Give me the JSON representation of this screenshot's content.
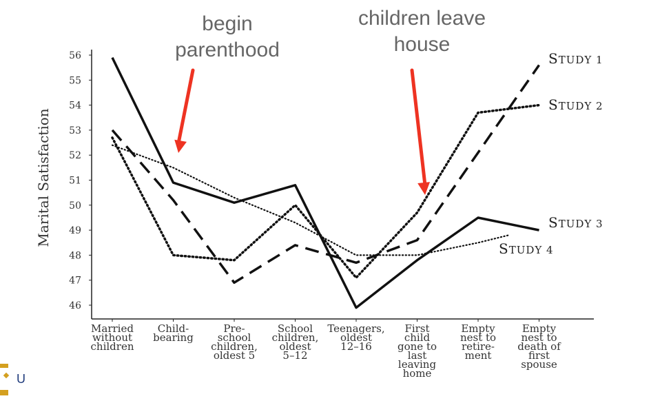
{
  "annotations": {
    "begin": [
      "begin",
      "parenthood"
    ],
    "leave": [
      "children leave",
      "house"
    ]
  },
  "colors": {
    "arrow": "#ee3322",
    "line": "#111111",
    "ann_text": "#666666",
    "logo_gold": "#d4a020",
    "logo_blue": "#1e3a7b"
  },
  "logo_text": "U",
  "chart_data": {
    "type": "line",
    "ylabel": "Marital Satisfaction",
    "ylim": [
      46,
      56
    ],
    "yticks": [
      46,
      47,
      48,
      49,
      50,
      51,
      52,
      53,
      54,
      55,
      56
    ],
    "categories": [
      [
        "Married",
        "without",
        "children"
      ],
      [
        "Child-",
        "bearing"
      ],
      [
        "Pre-",
        "school",
        "children,",
        "oldest 5"
      ],
      [
        "School",
        "children,",
        "oldest",
        "5–12"
      ],
      [
        "Teenagers,",
        "oldest",
        "12–16"
      ],
      [
        "First",
        "child",
        "gone to",
        "last",
        "leaving",
        "home"
      ],
      [
        "Empty",
        "nest to",
        "retire-",
        "ment"
      ],
      [
        "Empty",
        "nest to",
        "death of",
        "first",
        "spouse"
      ]
    ],
    "series": [
      {
        "name": "Study 1",
        "style": "dashed",
        "x": [
          0,
          1,
          2,
          3,
          4,
          5,
          7
        ],
        "values": [
          53.0,
          50.2,
          46.9,
          48.4,
          47.7,
          48.6,
          55.6
        ]
      },
      {
        "name": "Study 2",
        "style": "dotted",
        "x": [
          0,
          1,
          2,
          3,
          4,
          5,
          6,
          7
        ],
        "values": [
          52.7,
          48.0,
          47.8,
          50.0,
          47.1,
          49.7,
          53.7,
          54.0
        ]
      },
      {
        "name": "Study 3",
        "style": "solid",
        "x": [
          0,
          1,
          2,
          3,
          4,
          5,
          6,
          7
        ],
        "values": [
          55.9,
          50.9,
          50.1,
          50.8,
          45.9,
          47.8,
          49.5,
          49.0
        ]
      },
      {
        "name": "Study 4",
        "style": "fine-dotted",
        "x": [
          0,
          1,
          2,
          3,
          4,
          5,
          6,
          6.5
        ],
        "values": [
          52.4,
          51.5,
          50.3,
          49.3,
          48.0,
          48.0,
          48.5,
          48.8
        ]
      }
    ],
    "legend_labels": [
      "Study 1",
      "Study 2",
      "Study 3",
      "Study 4"
    ]
  }
}
